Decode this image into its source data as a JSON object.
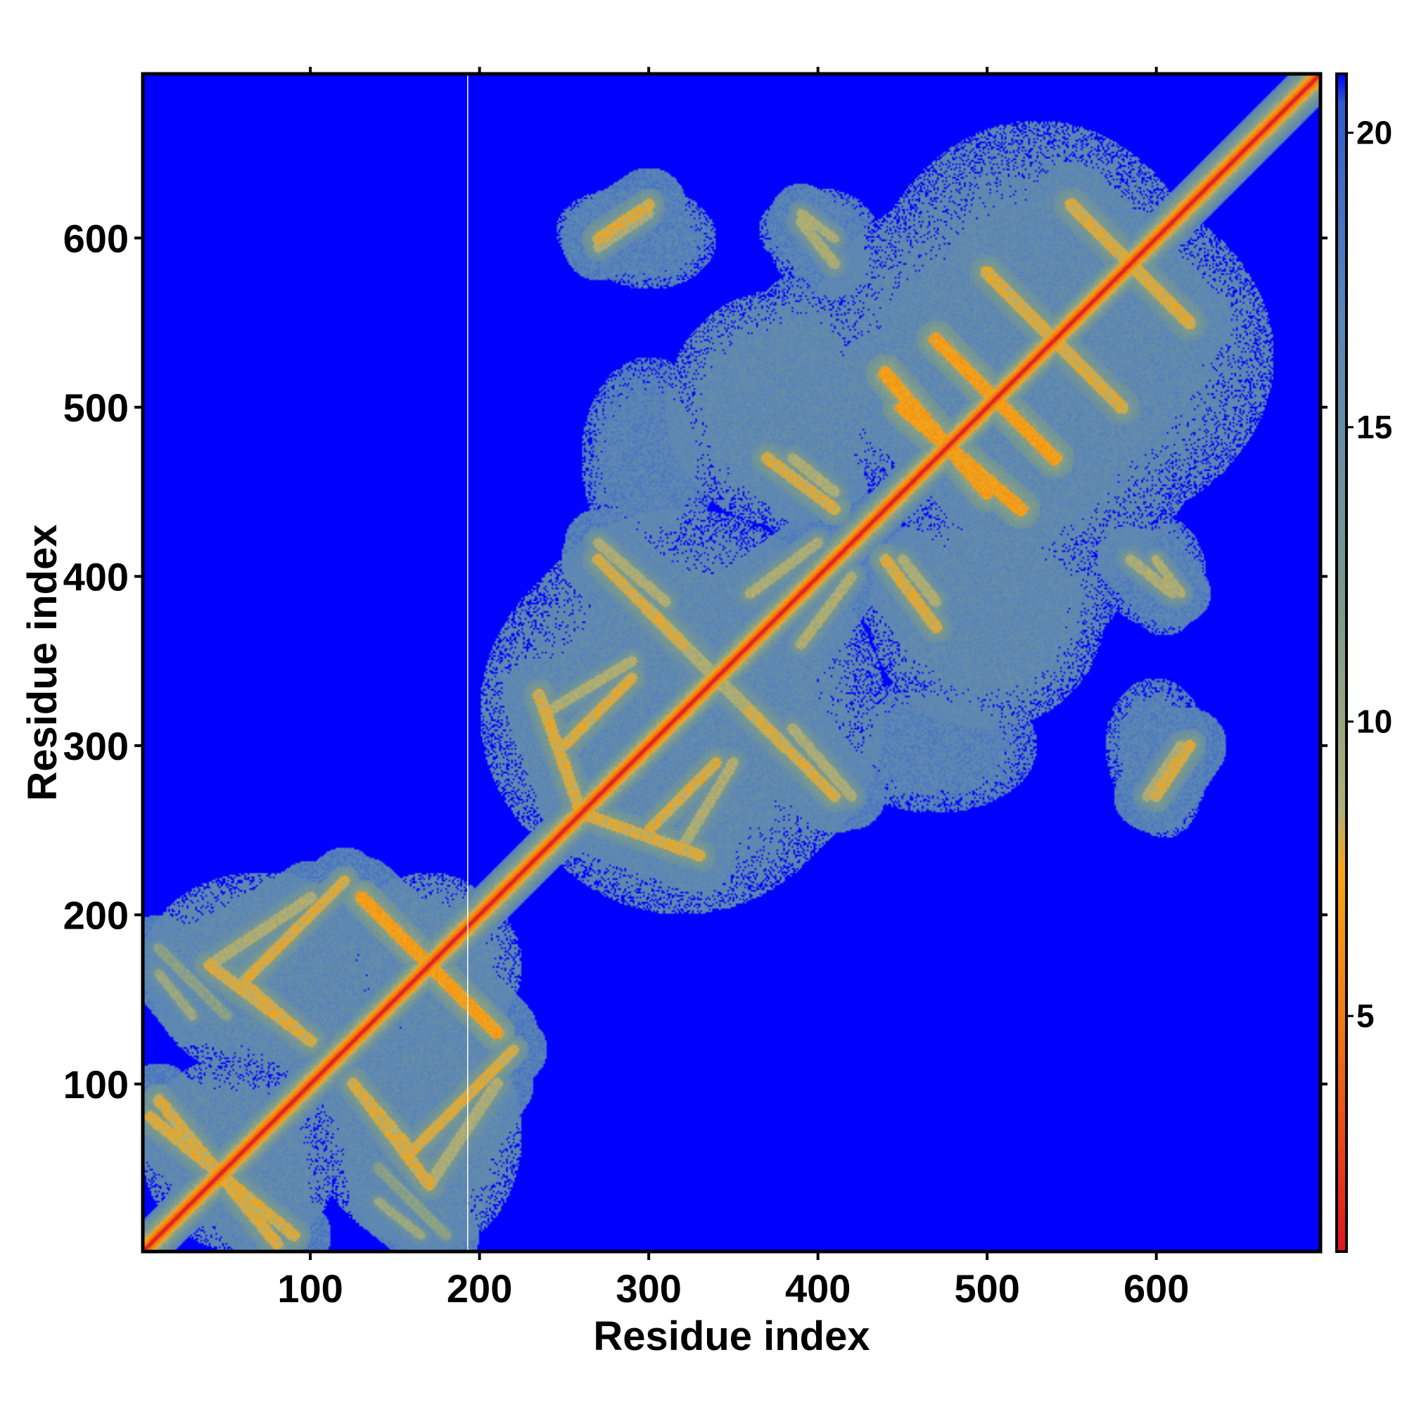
{
  "chart_data": {
    "type": "heatmap",
    "title": "",
    "xlabel": "Residue index",
    "ylabel": "Residue index",
    "xlim": [
      1,
      697
    ],
    "ylim": [
      1,
      697
    ],
    "x_ticks": [
      100,
      200,
      300,
      400,
      500,
      600
    ],
    "y_ticks": [
      100,
      200,
      300,
      400,
      500,
      600
    ],
    "colorbar": {
      "range": [
        1,
        21
      ],
      "ticks": [
        5,
        10,
        15,
        20
      ],
      "stops": [
        {
          "value": 1,
          "color": "#e0161c"
        },
        {
          "value": 3,
          "color": "#ec4a16"
        },
        {
          "value": 5,
          "color": "#f07d14"
        },
        {
          "value": 7.5,
          "color": "#f7a614"
        },
        {
          "value": 8.5,
          "color": "#b0b078"
        },
        {
          "value": 12,
          "color": "#7a9a8e"
        },
        {
          "value": 17,
          "color": "#5a85b8"
        },
        {
          "value": 20.5,
          "color": "#2f5ccf"
        },
        {
          "value": 21,
          "color": "#0000ff"
        }
      ]
    },
    "background_value": 21,
    "diagonal": {
      "value": 1.5,
      "band_halfwidth": 6
    },
    "contact_features": [
      {
        "kind": "antidiagonal",
        "from": [
          5,
          80
        ],
        "to": [
          90,
          10
        ],
        "halfwidth": 10,
        "value": 9
      },
      {
        "kind": "antidiagonal",
        "from": [
          10,
          180
        ],
        "to": [
          50,
          140
        ],
        "halfwidth": 9,
        "value": 12
      },
      {
        "kind": "antidiagonal",
        "from": [
          60,
          160
        ],
        "to": [
          120,
          220
        ],
        "halfwidth": 9,
        "value": 9
      },
      {
        "kind": "antidiagonal",
        "from": [
          60,
          160
        ],
        "to": [
          100,
          125
        ],
        "halfwidth": 9,
        "value": 9
      },
      {
        "kind": "antidiagonal",
        "from": [
          130,
          210
        ],
        "to": [
          210,
          130
        ],
        "halfwidth": 11,
        "value": 8
      },
      {
        "kind": "antidiagonal",
        "from": [
          125,
          100
        ],
        "to": [
          170,
          40
        ],
        "halfwidth": 10,
        "value": 9
      },
      {
        "kind": "antidiagonal",
        "from": [
          170,
          40
        ],
        "to": [
          210,
          100
        ],
        "halfwidth": 10,
        "value": 10
      },
      {
        "kind": "antidiagonal",
        "from": [
          140,
          30
        ],
        "to": [
          165,
          10
        ],
        "halfwidth": 8,
        "value": 11
      },
      {
        "kind": "antidiagonal",
        "from": [
          260,
          260
        ],
        "to": [
          330,
          235
        ],
        "halfwidth": 10,
        "value": 9
      },
      {
        "kind": "antidiagonal",
        "from": [
          250,
          300
        ],
        "to": [
          290,
          340
        ],
        "halfwidth": 9,
        "value": 9
      },
      {
        "kind": "antidiagonal",
        "from": [
          270,
          410
        ],
        "to": [
          320,
          360
        ],
        "halfwidth": 10,
        "value": 9
      },
      {
        "kind": "antidiagonal",
        "from": [
          300,
          380
        ],
        "to": [
          380,
          300
        ],
        "halfwidth": 12,
        "value": 10
      },
      {
        "kind": "antidiagonal",
        "from": [
          320,
          240
        ],
        "to": [
          350,
          290
        ],
        "halfwidth": 9,
        "value": 10
      },
      {
        "kind": "antidiagonal",
        "from": [
          385,
          310
        ],
        "to": [
          420,
          270
        ],
        "halfwidth": 9,
        "value": 10
      },
      {
        "kind": "antidiagonal",
        "from": [
          360,
          390
        ],
        "to": [
          400,
          420
        ],
        "halfwidth": 9,
        "value": 10
      },
      {
        "kind": "antidiagonal",
        "from": [
          270,
          600
        ],
        "to": [
          300,
          620
        ],
        "halfwidth": 10,
        "value": 9
      },
      {
        "kind": "antidiagonal",
        "from": [
          390,
          610
        ],
        "to": [
          410,
          585
        ],
        "halfwidth": 9,
        "value": 10
      },
      {
        "kind": "antidiagonal",
        "from": [
          370,
          470
        ],
        "to": [
          410,
          440
        ],
        "halfwidth": 10,
        "value": 9
      },
      {
        "kind": "antidiagonal",
        "from": [
          440,
          520
        ],
        "to": [
          500,
          450
        ],
        "halfwidth": 12,
        "value": 8
      },
      {
        "kind": "antidiagonal",
        "from": [
          470,
          540
        ],
        "to": [
          540,
          470
        ],
        "halfwidth": 12,
        "value": 8
      },
      {
        "kind": "antidiagonal",
        "from": [
          520,
          560
        ],
        "to": [
          580,
          500
        ],
        "halfwidth": 11,
        "value": 9
      },
      {
        "kind": "antidiagonal",
        "from": [
          550,
          620
        ],
        "to": [
          610,
          560
        ],
        "halfwidth": 11,
        "value": 9
      },
      {
        "kind": "antidiagonal",
        "from": [
          450,
          410
        ],
        "to": [
          470,
          385
        ],
        "halfwidth": 9,
        "value": 10
      },
      {
        "kind": "antidiagonal",
        "from": [
          600,
          410
        ],
        "to": [
          615,
          390
        ],
        "halfwidth": 8,
        "value": 10
      },
      {
        "kind": "antidiagonal",
        "from": [
          595,
          270
        ],
        "to": [
          615,
          300
        ],
        "halfwidth": 9,
        "value": 10
      }
    ],
    "contact_regions": [
      {
        "center": [
          80,
          160
        ],
        "radius": [
          75,
          60
        ],
        "value": 16
      },
      {
        "center": [
          50,
          60
        ],
        "radius": [
          50,
          55
        ],
        "value": 16
      },
      {
        "center": [
          170,
          170
        ],
        "radius": [
          50,
          55
        ],
        "value": 16
      },
      {
        "center": [
          170,
          70
        ],
        "radius": [
          55,
          70
        ],
        "value": 16
      },
      {
        "center": [
          320,
          320
        ],
        "radius": [
          110,
          120
        ],
        "value": 16
      },
      {
        "center": [
          470,
          300
        ],
        "radius": [
          60,
          40
        ],
        "value": 17
      },
      {
        "center": [
          380,
          500
        ],
        "radius": [
          70,
          70
        ],
        "value": 16
      },
      {
        "center": [
          530,
          530
        ],
        "radius": [
          110,
          140
        ],
        "value": 16
      },
      {
        "center": [
          500,
          390
        ],
        "radius": [
          80,
          40
        ],
        "value": 17
      },
      {
        "center": [
          300,
          600
        ],
        "radius": [
          40,
          30
        ],
        "value": 17
      },
      {
        "center": [
          400,
          600
        ],
        "radius": [
          30,
          30
        ],
        "value": 17
      },
      {
        "center": [
          605,
          285
        ],
        "radius": [
          25,
          40
        ],
        "value": 17
      },
      {
        "center": [
          605,
          400
        ],
        "radius": [
          25,
          35
        ],
        "value": 17
      }
    ],
    "highlight_column": 193
  }
}
